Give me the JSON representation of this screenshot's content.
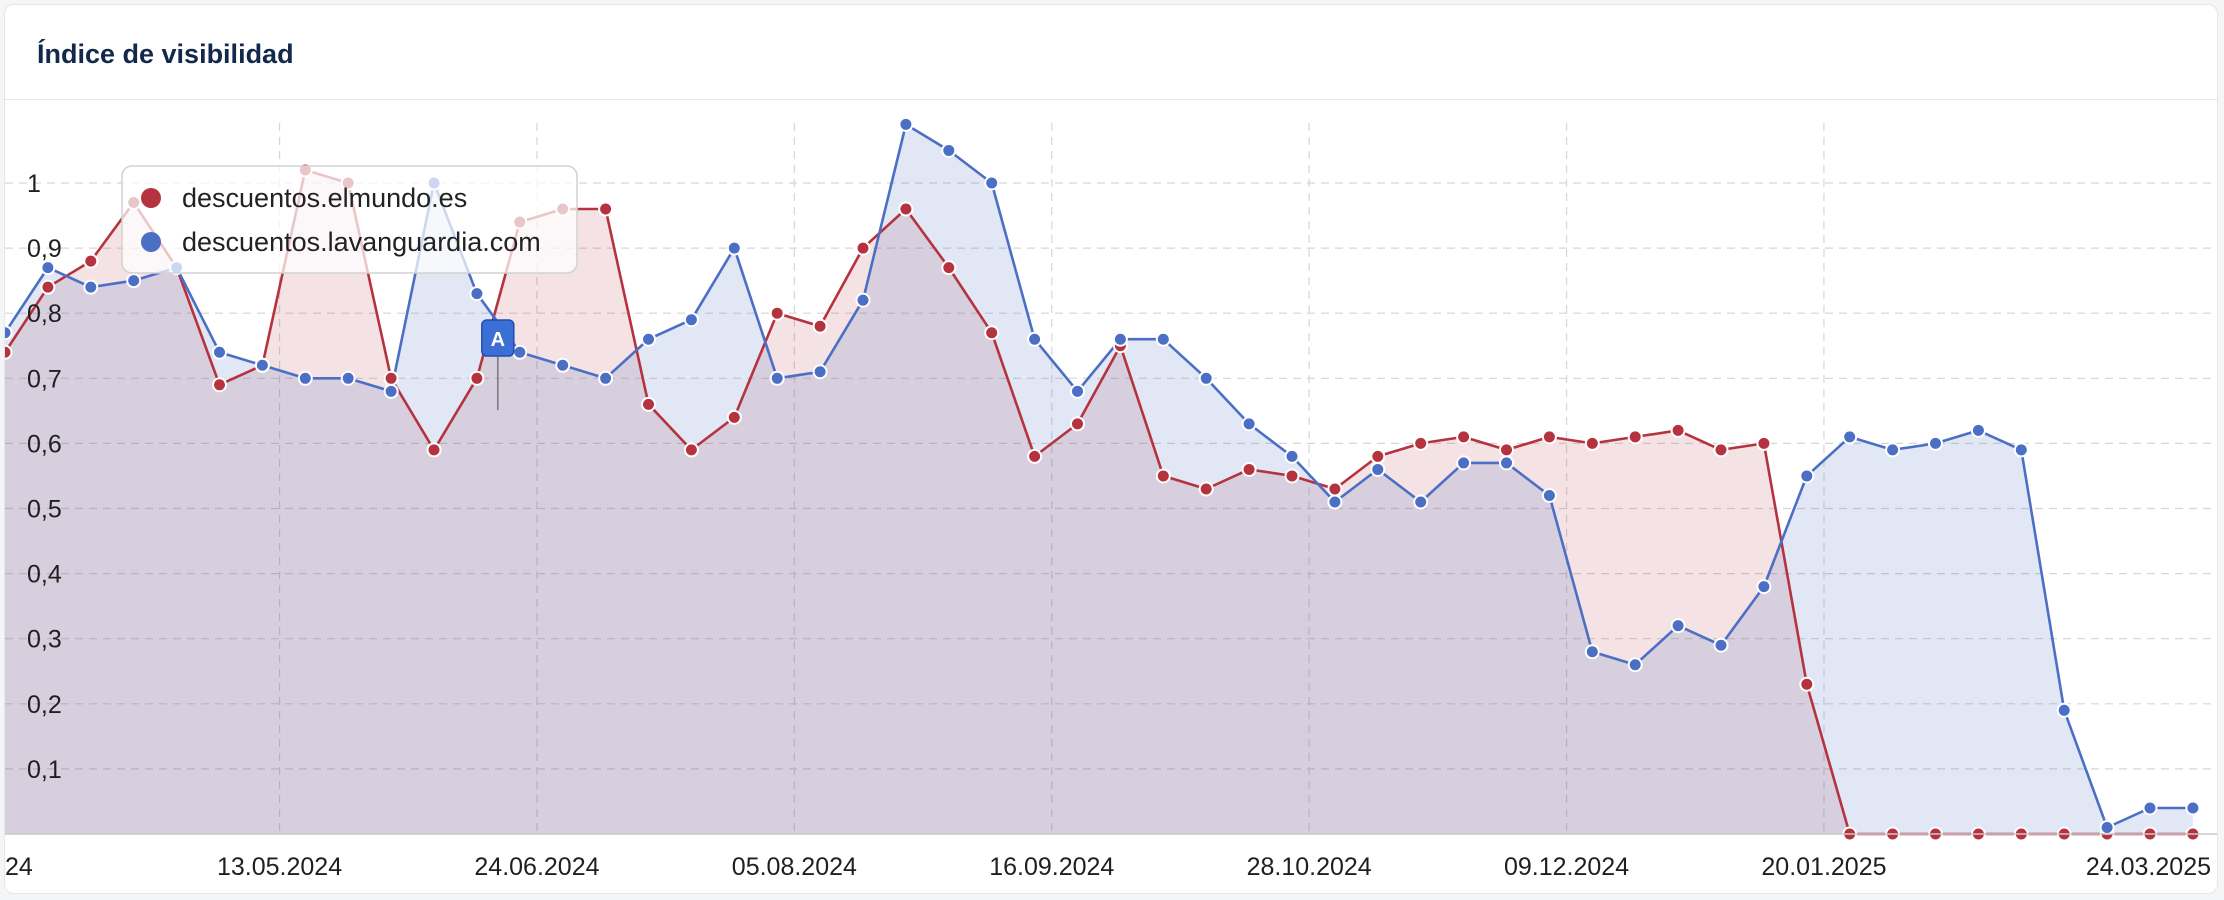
{
  "card": {
    "title": "Índice de visibilidad"
  },
  "chart_data": {
    "type": "area",
    "title": "Índice de visibilidad",
    "xlabel": "",
    "ylabel": "",
    "ylim": [
      0,
      1.1
    ],
    "y_ticks": [
      0.1,
      0.2,
      0.3,
      0.4,
      0.5,
      0.6,
      0.7,
      0.8,
      0.9,
      1
    ],
    "y_tick_labels": [
      "0,1",
      "0,2",
      "0,3",
      "0,4",
      "0,5",
      "0,6",
      "0,7",
      "0,8",
      "0,9",
      "1"
    ],
    "x_tick_labels": [
      "24",
      "13.05.2024",
      "24.06.2024",
      "05.08.2024",
      "16.09.2024",
      "28.10.2024",
      "09.12.2024",
      "20.01.2025",
      "24.03.2025"
    ],
    "x_tick_indices": [
      0,
      6.4,
      12.4,
      18.4,
      24.4,
      30.4,
      36.4,
      42.4,
      51
    ],
    "grid": true,
    "legend_placement": "top-left",
    "x": [
      "01.04.2024",
      "08.04.2024",
      "15.04.2024",
      "22.04.2024",
      "29.04.2024",
      "06.05.2024",
      "13.05.2024",
      "20.05.2024",
      "27.05.2024",
      "03.06.2024",
      "10.06.2024",
      "17.06.2024",
      "24.06.2024",
      "01.07.2024",
      "08.07.2024",
      "15.07.2024",
      "22.07.2024",
      "29.07.2024",
      "05.08.2024",
      "12.08.2024",
      "19.08.2024",
      "26.08.2024",
      "02.09.2024",
      "09.09.2024",
      "16.09.2024",
      "23.09.2024",
      "30.09.2024",
      "07.10.2024",
      "14.10.2024",
      "21.10.2024",
      "28.10.2024",
      "04.11.2024",
      "11.11.2024",
      "18.11.2024",
      "25.11.2024",
      "02.12.2024",
      "09.12.2024",
      "16.12.2024",
      "23.12.2024",
      "30.12.2024",
      "06.01.2025",
      "13.01.2025",
      "20.01.2025",
      "27.01.2025",
      "03.02.2025",
      "10.02.2025",
      "17.02.2025",
      "24.02.2025",
      "03.03.2025",
      "10.03.2025",
      "17.03.2025",
      "24.03.2025"
    ],
    "series": [
      {
        "name": "descuentos.elmundo.es",
        "color": "#b5333e",
        "values": [
          0.74,
          0.84,
          0.88,
          0.97,
          0.87,
          0.69,
          0.72,
          1.02,
          1.0,
          0.7,
          0.59,
          0.7,
          0.94,
          0.96,
          0.96,
          0.66,
          0.59,
          0.64,
          0.8,
          0.78,
          0.9,
          0.96,
          0.87,
          0.77,
          0.58,
          0.63,
          0.75,
          0.55,
          0.53,
          0.56,
          0.55,
          0.53,
          0.58,
          0.6,
          0.61,
          0.59,
          0.61,
          0.6,
          0.61,
          0.62,
          0.59,
          0.6,
          0.23,
          0.0,
          0.0,
          0.0,
          0.0,
          0.0,
          0.0,
          0.0,
          0.0,
          0.0
        ]
      },
      {
        "name": "descuentos.lavanguardia.com",
        "color": "#4b6fc4",
        "values": [
          0.77,
          0.87,
          0.84,
          0.85,
          0.87,
          0.74,
          0.72,
          0.7,
          0.7,
          0.68,
          1.0,
          0.83,
          0.74,
          0.72,
          0.7,
          0.76,
          0.79,
          0.9,
          0.7,
          0.71,
          0.82,
          1.09,
          1.05,
          1.0,
          0.76,
          0.68,
          0.76,
          0.76,
          0.7,
          0.63,
          0.58,
          0.51,
          0.56,
          0.51,
          0.57,
          0.57,
          0.52,
          0.28,
          0.26,
          0.32,
          0.29,
          0.38,
          0.55,
          0.61,
          0.59,
          0.6,
          0.62,
          0.59,
          0.19,
          0.01,
          0.04,
          0.04
        ]
      }
    ],
    "annotations": [
      {
        "label": "A",
        "x": "24.06.2024"
      }
    ]
  }
}
